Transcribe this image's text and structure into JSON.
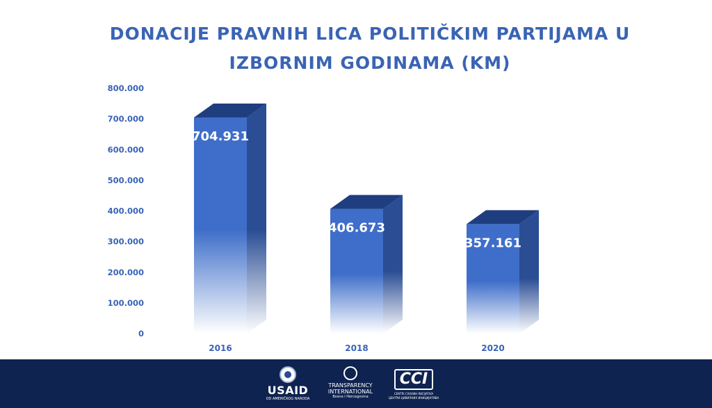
{
  "title_lines": [
    "DONACIJE PRAVNIH LICA POLITIČKIM PARTIJAMA U",
    "IZBORNIM GODINAMA (KM)"
  ],
  "chart_data": {
    "type": "bar",
    "title": "DONACIJE PRAVNIH LICA POLITIČKIM PARTIJAMA U IZBORNIM GODINAMA (KM)",
    "categories": [
      "2016",
      "2018",
      "2020"
    ],
    "values": [
      704931,
      406673,
      357161
    ],
    "data_labels": [
      "704.931",
      "406.673",
      "357.161"
    ],
    "ylim": [
      0,
      800000
    ],
    "yticks": [
      0,
      100000,
      200000,
      300000,
      400000,
      500000,
      600000,
      700000,
      800000
    ],
    "ytick_labels": [
      "0",
      "100.000",
      "200.000",
      "300.000",
      "400.000",
      "500.000",
      "600.000",
      "700.000",
      "800.000"
    ],
    "grid": false,
    "legend": "none",
    "bar_color": "#3e6ec9",
    "bar_side_color": "#2a4d94",
    "bar_top_color": "#1f3e80"
  },
  "footer": {
    "background": "#0f2351",
    "usaid": {
      "name": "USAID",
      "sub": "OD AMERIČKOG NARODA",
      "icon": "usaid-seal-icon"
    },
    "ti": {
      "name1": "TRANSPARENCY",
      "name2": "INTERNATIONAL",
      "sub": "Bosna i Hercegovina",
      "icon": "globe-icon"
    },
    "cci": {
      "name": "CCI",
      "sub1": "CENTRI CIVILNIH INICIJATIVA",
      "sub2": "ЦЕНТРИ ЦИВИЛНИХ ИНИЦИЈАТИВА"
    }
  }
}
